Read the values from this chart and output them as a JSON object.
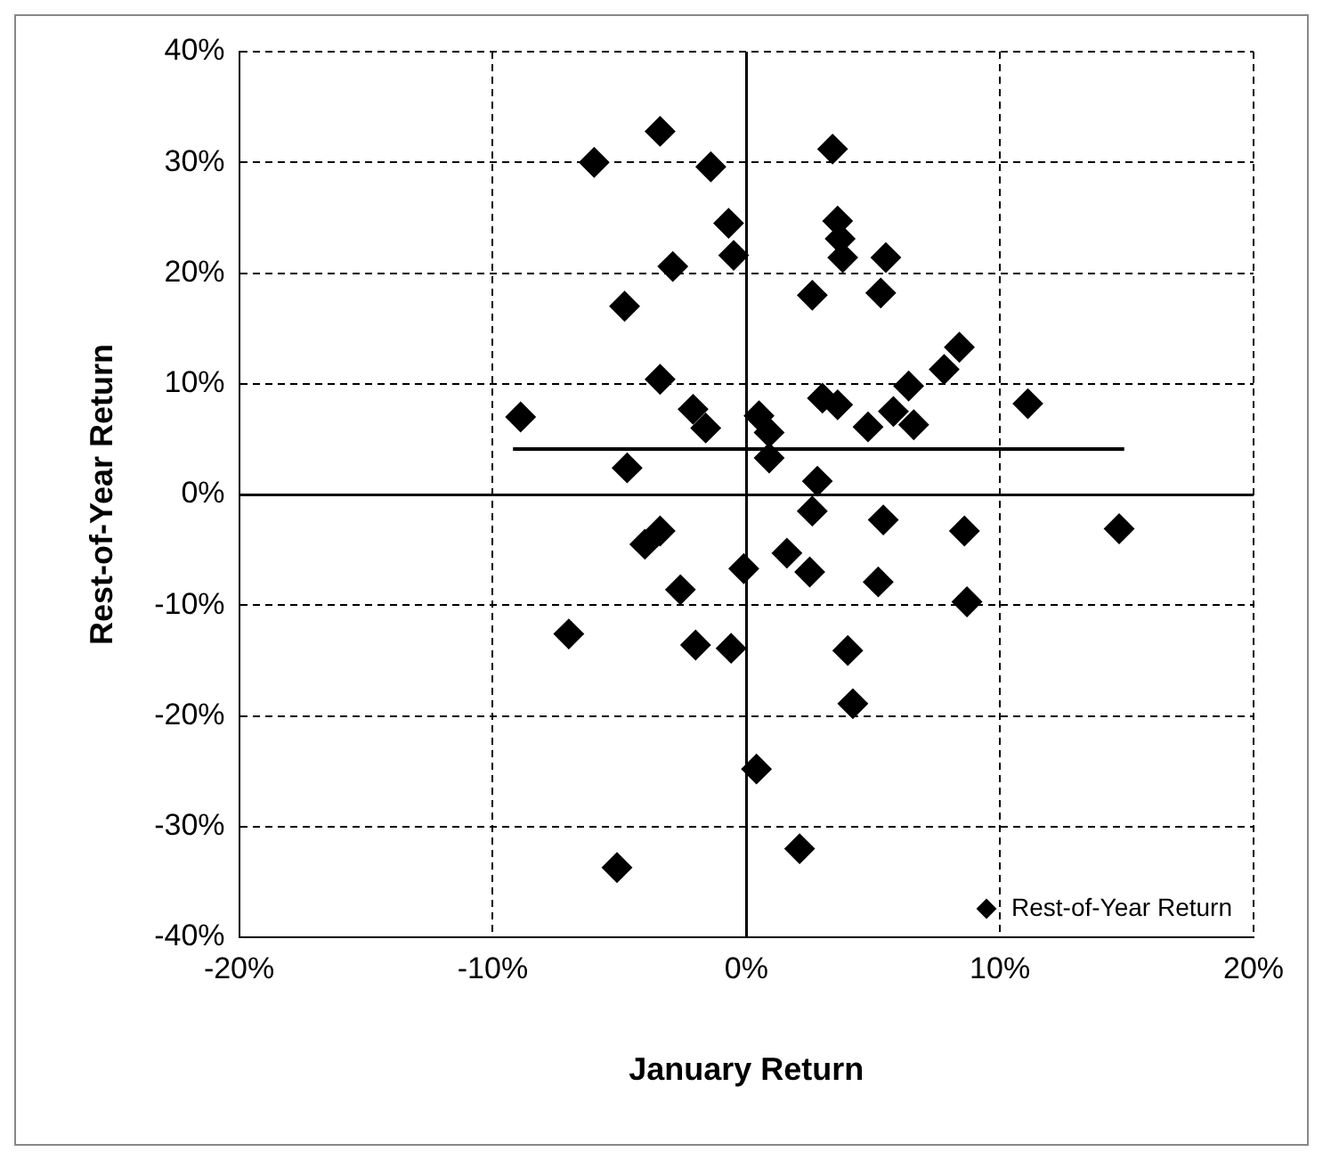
{
  "chart_data": {
    "type": "scatter",
    "xlabel": "January Return",
    "ylabel": "Rest-of-Year Return",
    "xlim": [
      -20,
      20
    ],
    "ylim": [
      -40,
      40
    ],
    "xticks": [
      {
        "value": -20,
        "label": "-20%"
      },
      {
        "value": -10,
        "label": "-10%"
      },
      {
        "value": 0,
        "label": "0%"
      },
      {
        "value": 10,
        "label": "10%"
      },
      {
        "value": 20,
        "label": "20%"
      }
    ],
    "yticks": [
      {
        "value": -40,
        "label": "-40%"
      },
      {
        "value": -30,
        "label": "-30%"
      },
      {
        "value": -20,
        "label": "-20%"
      },
      {
        "value": -10,
        "label": "-10%"
      },
      {
        "value": 0,
        "label": "0%"
      },
      {
        "value": 10,
        "label": "10%"
      },
      {
        "value": 20,
        "label": "20%"
      },
      {
        "value": 30,
        "label": "30%"
      },
      {
        "value": 40,
        "label": "40%"
      }
    ],
    "grid": true,
    "legend": "bottom right",
    "series": [
      {
        "name": "Rest-of-Year Return",
        "color": "#000000",
        "marker": "diamond",
        "x": [
          -8.9,
          -6.0,
          -3.4,
          -1.4,
          -0.7,
          -0.5,
          -2.9,
          -4.8,
          -3.4,
          -2.1,
          -1.6,
          -4.7,
          0.5,
          0.9,
          0.9,
          2.8,
          2.6,
          3.4,
          3.6,
          3.7,
          3.8,
          5.5,
          5.3,
          3.0,
          3.6,
          4.8,
          6.4,
          5.8,
          6.6,
          7.8,
          8.4,
          11.1,
          2.6,
          5.4,
          8.6,
          14.7,
          -4.0,
          -3.4,
          -0.1,
          1.6,
          2.5,
          -2.6,
          5.2,
          8.7,
          -7.0,
          -2.0,
          -0.6,
          4.0,
          4.2,
          0.4,
          -5.1,
          2.1
        ],
        "values": [
          7.0,
          30.0,
          32.8,
          29.6,
          24.5,
          21.6,
          20.6,
          17.0,
          10.4,
          7.7,
          6.0,
          2.4,
          7.1,
          5.6,
          3.3,
          1.2,
          18.0,
          31.2,
          24.7,
          23.1,
          21.4,
          21.4,
          18.2,
          8.7,
          8.1,
          6.1,
          9.8,
          7.5,
          6.3,
          11.3,
          13.3,
          8.2,
          -1.5,
          -2.3,
          -3.3,
          -3.1,
          -4.5,
          -3.3,
          -6.7,
          -5.3,
          -7.0,
          -8.6,
          -7.9,
          -9.7,
          -12.6,
          -13.6,
          -13.9,
          -14.1,
          -18.9,
          -24.8,
          -33.7,
          -32.0
        ]
      },
      {
        "type": "line",
        "color": "#000000",
        "x": [
          -9.2,
          14.9
        ],
        "values": [
          4.1,
          4.1
        ]
      }
    ]
  }
}
